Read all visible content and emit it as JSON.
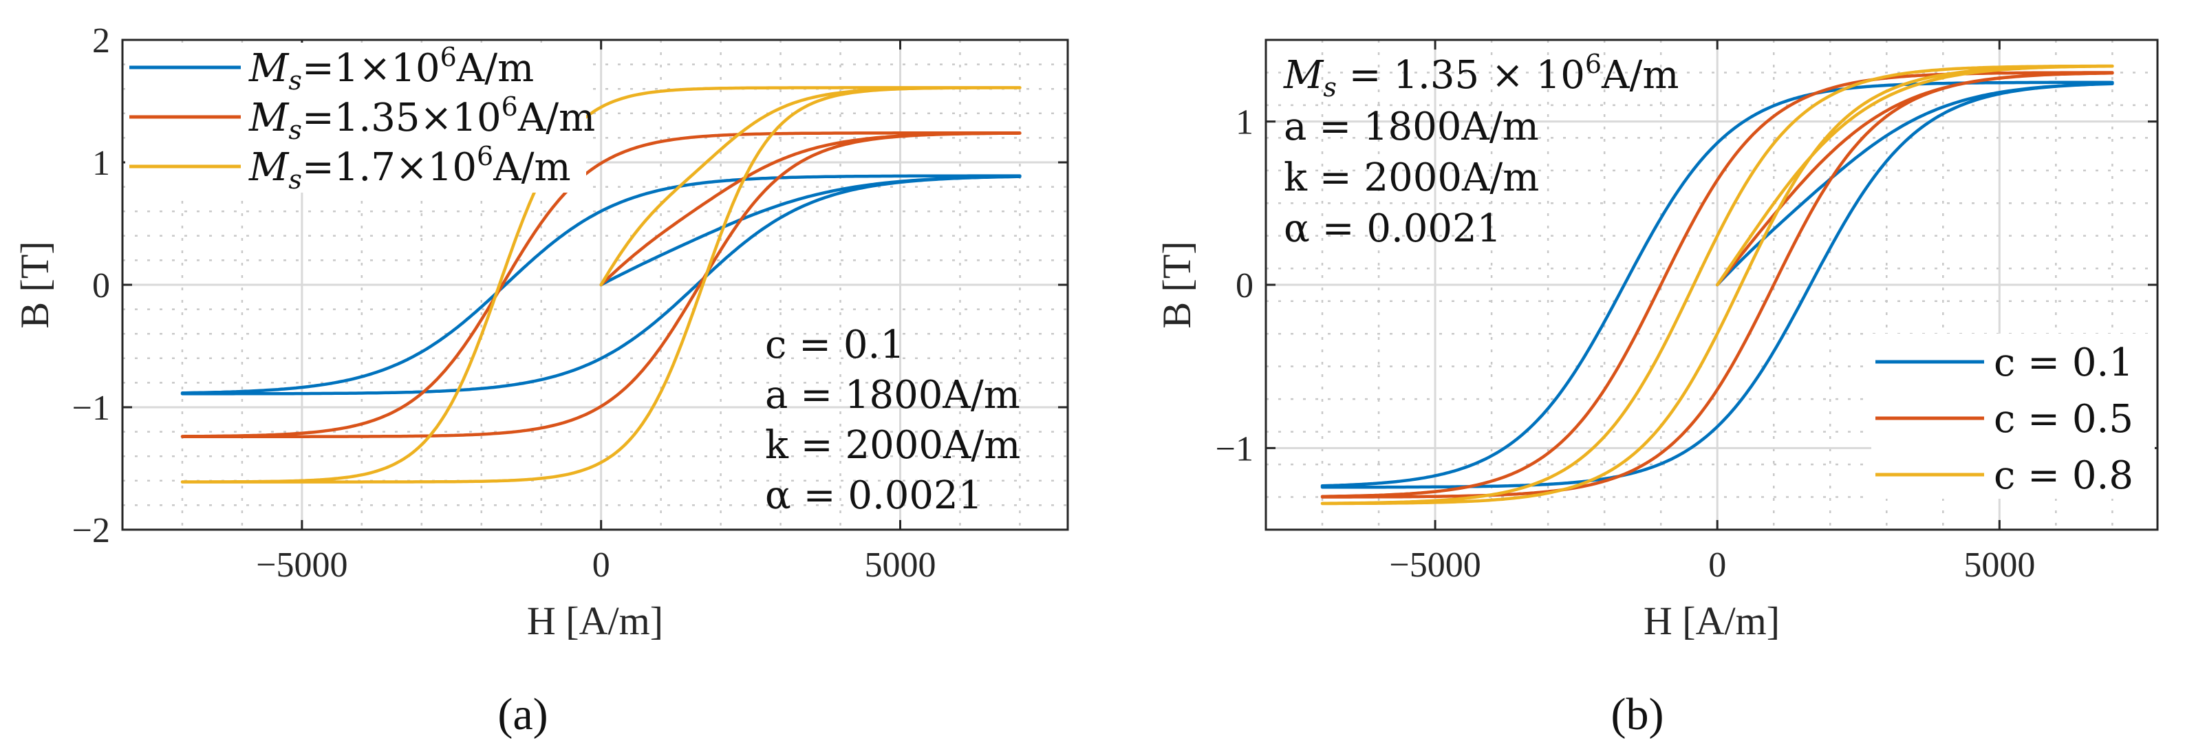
{
  "figure": {
    "panel_labels": [
      "(a)",
      "(b)"
    ]
  },
  "chart_data": [
    {
      "type": "line",
      "panel": "(a)",
      "title": "",
      "xlabel": "H [A/m]",
      "ylabel": "B [T]",
      "xlim": [
        -8000,
        7800
      ],
      "ylim": [
        -2,
        2
      ],
      "xticks": [
        -5000,
        0,
        5000
      ],
      "xtick_labels": [
        "−5000",
        "0",
        "5000"
      ],
      "yticks": [
        -2,
        -1,
        0,
        1,
        2
      ],
      "ytick_labels": [
        "−2",
        "−1",
        "0",
        "1",
        "2"
      ],
      "grid": true,
      "legend_position": "top-left",
      "h_max": 7000,
      "series": [
        {
          "name": "M_s=1×10^6A/m",
          "label_main": "M",
          "label_sub": "s",
          "label_rest": "=1×10",
          "label_exp": "6",
          "label_unit": "A/m",
          "color": "#0072BD",
          "Bsat": 0.89,
          "Hc": 1600,
          "width_scale": 1950,
          "Br": 0.47
        },
        {
          "name": "M_s=1.35×10^6A/m",
          "label_main": "M",
          "label_sub": "s",
          "label_rest": "=1.35×10",
          "label_exp": "6",
          "label_unit": "A/m",
          "color": "#D95319",
          "Bsat": 1.24,
          "Hc": 1650,
          "width_scale": 1500,
          "Br": 0.82
        },
        {
          "name": "M_s=1.7×10^6A/m",
          "label_main": "M",
          "label_sub": "s",
          "label_rest": "=1.7×10",
          "label_exp": "6",
          "label_unit": "A/m",
          "color": "#EDB120",
          "Bsat": 1.61,
          "Hc": 1700,
          "width_scale": 1150,
          "Br": 1.15
        }
      ],
      "annotations": [
        "c = 0.1",
        "a = 1800A/m",
        "k = 2000A/m",
        "α = 0.0021"
      ]
    },
    {
      "type": "line",
      "panel": "(b)",
      "title": "",
      "xlabel": "H [A/m]",
      "ylabel": "B [T]",
      "xlim": [
        -8000,
        7800
      ],
      "ylim": [
        -1.5,
        1.5
      ],
      "xticks": [
        -5000,
        0,
        5000
      ],
      "xtick_labels": [
        "−5000",
        "0",
        "5000"
      ],
      "yticks": [
        -1,
        0,
        1
      ],
      "ytick_labels": [
        "−1",
        "0",
        "1"
      ],
      "grid": true,
      "legend_position": "bottom-right",
      "h_max": 7000,
      "series": [
        {
          "name": "c = 0.1",
          "label": "c = 0.1",
          "color": "#0072BD",
          "Bsat": 1.24,
          "Hc": 1650,
          "width_scale": 1900
        },
        {
          "name": "c = 0.5",
          "label": "c = 0.5",
          "color": "#D95319",
          "Bsat": 1.3,
          "Hc": 1000,
          "width_scale": 1850
        },
        {
          "name": "c = 0.8",
          "label": "c = 0.8",
          "color": "#EDB120",
          "Bsat": 1.34,
          "Hc": 420,
          "width_scale": 1850
        }
      ],
      "annotations": [
        "M_s = 1.35 × 10^6A/m",
        "a = 1800A/m",
        "k = 2000A/m",
        "α = 0.0021"
      ],
      "annotation_ms": {
        "main": "M",
        "sub": "s",
        "rest": " = 1.35 × 10",
        "exp": "6",
        "unit": "A/m"
      }
    }
  ]
}
